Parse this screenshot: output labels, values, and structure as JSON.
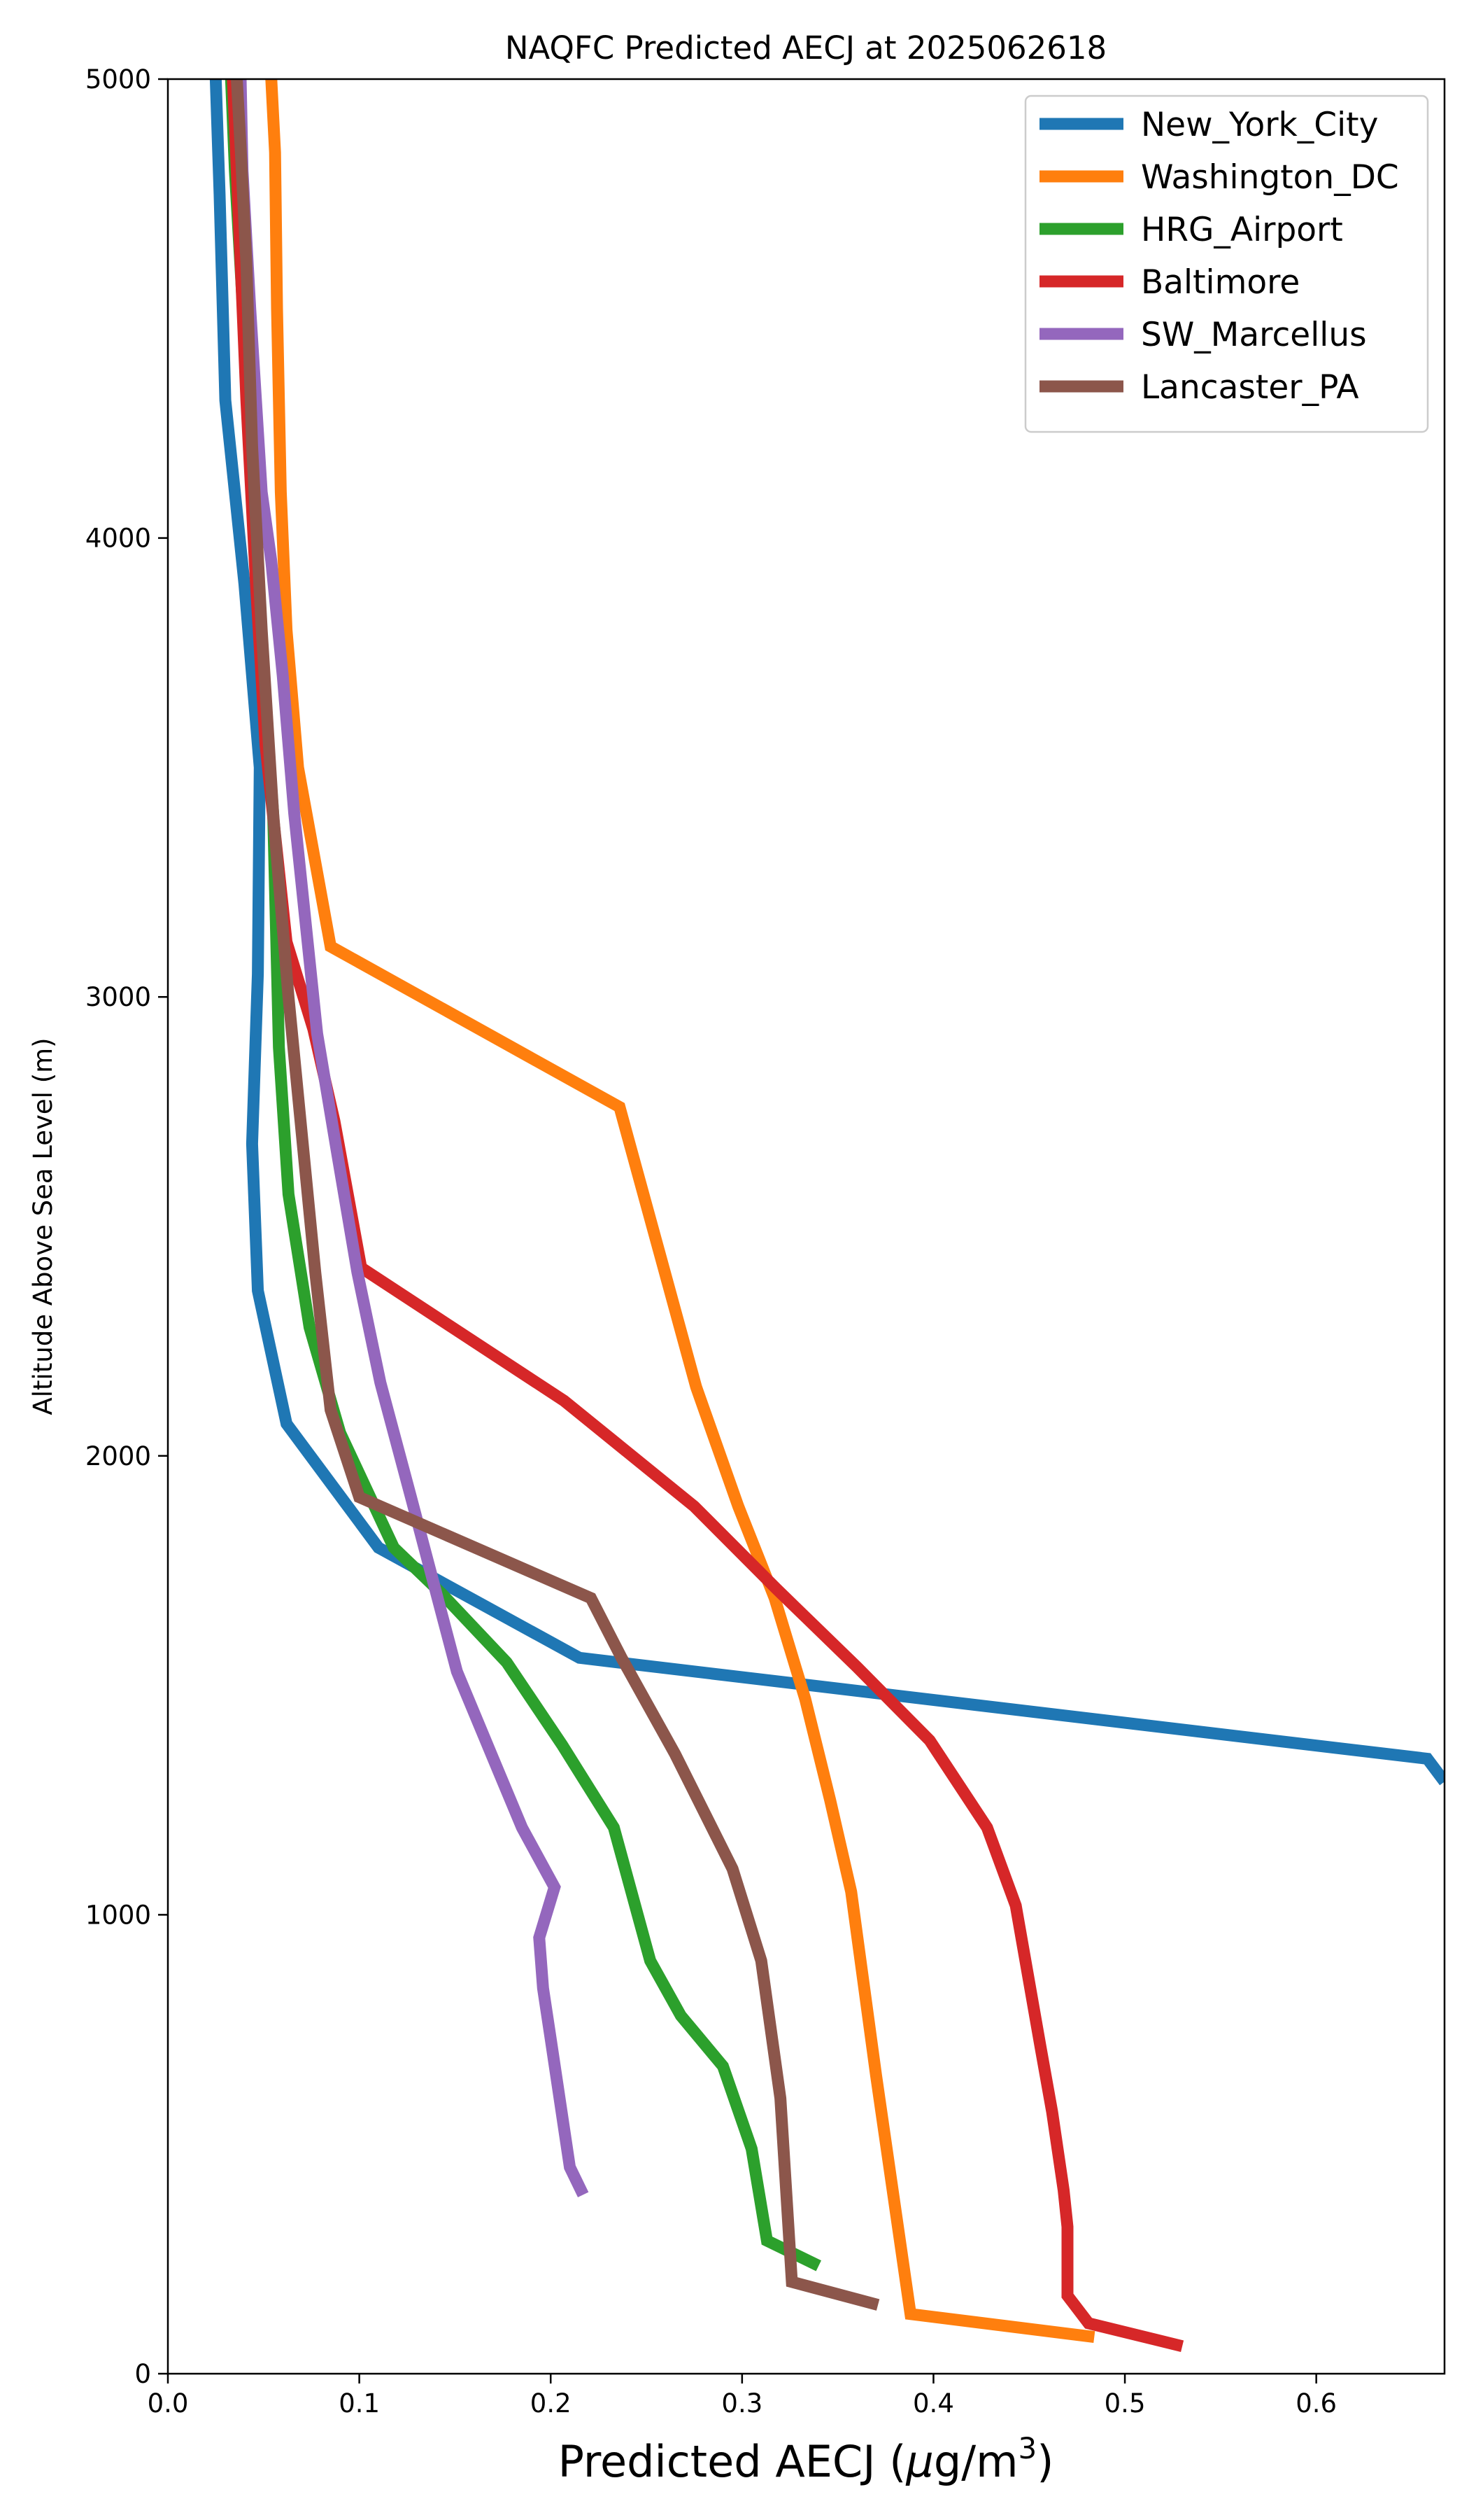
{
  "chart_data": {
    "type": "line",
    "title": "NAQFC Predicted AECJ at 2025062618",
    "xlabel": "Predicted AECJ (μg/m³)",
    "xlabel_parts": {
      "main": "Predicted AECJ (",
      "mu": "μ",
      "unit": "g/m",
      "sup": "3",
      "close": ")"
    },
    "ylabel": "Altitude Above Sea Level (m)",
    "xlim": [
      0.0,
      0.667
    ],
    "ylim": [
      0,
      5000
    ],
    "x_ticks": [
      "0.0",
      "0.1",
      "0.2",
      "0.3",
      "0.4",
      "0.5",
      "0.6"
    ],
    "y_ticks": [
      "0",
      "1000",
      "2000",
      "3000",
      "4000",
      "5000"
    ],
    "grid": false,
    "legend_position": "top-right",
    "series": [
      {
        "name": "New_York_City",
        "color": "#1f77b4",
        "points": [
          [
            0.667,
            1290
          ],
          [
            0.658,
            1340
          ],
          [
            0.215,
            1560
          ],
          [
            0.11,
            1800
          ],
          [
            0.062,
            2070
          ],
          [
            0.047,
            2360
          ],
          [
            0.044,
            2680
          ],
          [
            0.047,
            3050
          ],
          [
            0.048,
            3500
          ],
          [
            0.04,
            3900
          ],
          [
            0.03,
            4300
          ],
          [
            0.027,
            4750
          ],
          [
            0.025,
            5000
          ]
        ]
      },
      {
        "name": "Washington_DC",
        "color": "#ff7f0e",
        "points": [
          [
            0.484,
            80
          ],
          [
            0.388,
            130
          ],
          [
            0.37,
            650
          ],
          [
            0.357,
            1050
          ],
          [
            0.346,
            1250
          ],
          [
            0.333,
            1470
          ],
          [
            0.317,
            1690
          ],
          [
            0.298,
            1890
          ],
          [
            0.276,
            2150
          ],
          [
            0.257,
            2440
          ],
          [
            0.236,
            2760
          ],
          [
            0.085,
            3110
          ],
          [
            0.068,
            3500
          ],
          [
            0.062,
            3800
          ],
          [
            0.059,
            4100
          ],
          [
            0.057,
            4500
          ],
          [
            0.056,
            4840
          ],
          [
            0.054,
            5000
          ]
        ]
      },
      {
        "name": "HRG_Airport",
        "color": "#2ca02c",
        "points": [
          [
            0.34,
            235
          ],
          [
            0.313,
            290
          ],
          [
            0.305,
            490
          ],
          [
            0.29,
            670
          ],
          [
            0.268,
            780
          ],
          [
            0.252,
            900
          ],
          [
            0.233,
            1190
          ],
          [
            0.206,
            1370
          ],
          [
            0.177,
            1550
          ],
          [
            0.143,
            1700
          ],
          [
            0.118,
            1800
          ],
          [
            0.09,
            2050
          ],
          [
            0.074,
            2280
          ],
          [
            0.063,
            2570
          ],
          [
            0.058,
            2890
          ],
          [
            0.055,
            3400
          ],
          [
            0.048,
            3800
          ],
          [
            0.042,
            4300
          ],
          [
            0.035,
            4800
          ],
          [
            0.033,
            5000
          ]
        ]
      },
      {
        "name": "Baltimore",
        "color": "#d62728",
        "points": [
          [
            0.53,
            60
          ],
          [
            0.481,
            110
          ],
          [
            0.47,
            170
          ],
          [
            0.47,
            320
          ],
          [
            0.468,
            400
          ],
          [
            0.462,
            570
          ],
          [
            0.456,
            710
          ],
          [
            0.443,
            1020
          ],
          [
            0.428,
            1190
          ],
          [
            0.398,
            1380
          ],
          [
            0.36,
            1540
          ],
          [
            0.318,
            1710
          ],
          [
            0.275,
            1890
          ],
          [
            0.207,
            2120
          ],
          [
            0.101,
            2410
          ],
          [
            0.087,
            2730
          ],
          [
            0.076,
            2930
          ],
          [
            0.062,
            3120
          ],
          [
            0.051,
            3550
          ],
          [
            0.046,
            3900
          ],
          [
            0.041,
            4300
          ],
          [
            0.036,
            4800
          ],
          [
            0.034,
            5000
          ]
        ]
      },
      {
        "name": "SW_Marcellus",
        "color": "#9467bd",
        "points": [
          [
            0.217,
            390
          ],
          [
            0.21,
            450
          ],
          [
            0.2,
            730
          ],
          [
            0.196,
            840
          ],
          [
            0.194,
            950
          ],
          [
            0.202,
            1060
          ],
          [
            0.185,
            1190
          ],
          [
            0.17,
            1340
          ],
          [
            0.151,
            1530
          ],
          [
            0.127,
            1910
          ],
          [
            0.111,
            2160
          ],
          [
            0.099,
            2400
          ],
          [
            0.088,
            2670
          ],
          [
            0.078,
            2920
          ],
          [
            0.066,
            3400
          ],
          [
            0.06,
            3700
          ],
          [
            0.054,
            3950
          ],
          [
            0.049,
            4100
          ],
          [
            0.043,
            4500
          ],
          [
            0.039,
            4800
          ],
          [
            0.038,
            5000
          ]
        ]
      },
      {
        "name": "Lancaster_PA",
        "color": "#8c564b",
        "points": [
          [
            0.371,
            150
          ],
          [
            0.326,
            200
          ],
          [
            0.32,
            600
          ],
          [
            0.31,
            900
          ],
          [
            0.295,
            1100
          ],
          [
            0.265,
            1350
          ],
          [
            0.237,
            1560
          ],
          [
            0.221,
            1690
          ],
          [
            0.1,
            1910
          ],
          [
            0.085,
            2100
          ],
          [
            0.077,
            2400
          ],
          [
            0.07,
            2700
          ],
          [
            0.063,
            3000
          ],
          [
            0.055,
            3400
          ],
          [
            0.049,
            3800
          ],
          [
            0.044,
            4200
          ],
          [
            0.041,
            4600
          ],
          [
            0.038,
            4850
          ],
          [
            0.036,
            5000
          ]
        ]
      }
    ]
  }
}
